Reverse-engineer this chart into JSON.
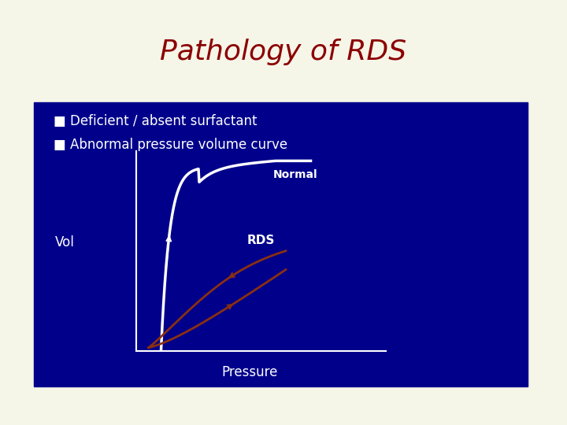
{
  "title": "Pathology of RDS",
  "title_color": "#8B0000",
  "title_fontsize": 26,
  "bg_color": "#F5F5E8",
  "box_color": "#00008B",
  "bullet1": "Deficient / absent surfactant",
  "bullet2": "Abnormal pressure volume curve",
  "bullet_color": "white",
  "vol_label": "Vol",
  "pressure_label": "Pressure",
  "normal_label": "Normal",
  "rds_label": "RDS",
  "normal_curve_color": "white",
  "rds_curve_color": "#8B3010"
}
